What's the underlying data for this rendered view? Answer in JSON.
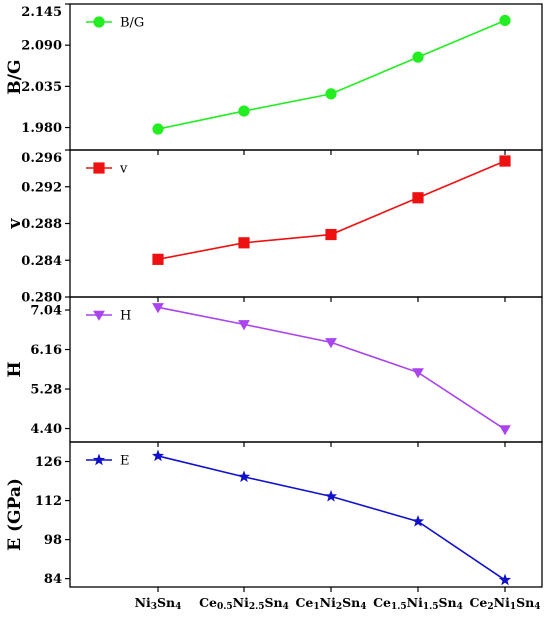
{
  "chart_data": {
    "type": "line",
    "categories": [
      {
        "parts": [
          [
            "Ni",
            ""
          ],
          [
            "3",
            "sub"
          ],
          [
            "Sn",
            ""
          ],
          [
            "4",
            "sub"
          ]
        ]
      },
      {
        "parts": [
          [
            "Ce",
            ""
          ],
          [
            "0.5",
            "sub"
          ],
          [
            "Ni",
            ""
          ],
          [
            "2.5",
            "sub"
          ],
          [
            "Sn",
            ""
          ],
          [
            "4",
            "sub"
          ]
        ]
      },
      {
        "parts": [
          [
            "Ce",
            ""
          ],
          [
            "1",
            "sub"
          ],
          [
            "Ni",
            ""
          ],
          [
            "2",
            "sub"
          ],
          [
            "Sn",
            ""
          ],
          [
            "4",
            "sub"
          ]
        ]
      },
      {
        "parts": [
          [
            "Ce",
            ""
          ],
          [
            "1.5",
            "sub"
          ],
          [
            "Ni",
            ""
          ],
          [
            "1.5",
            "sub"
          ],
          [
            "Sn",
            ""
          ],
          [
            "4",
            "sub"
          ]
        ]
      },
      {
        "parts": [
          [
            "Ce",
            ""
          ],
          [
            "2",
            "sub"
          ],
          [
            "Ni",
            ""
          ],
          [
            "1",
            "sub"
          ],
          [
            "Sn",
            ""
          ],
          [
            "4",
            "sub"
          ]
        ]
      }
    ],
    "panels": [
      {
        "ylabel": "B/G",
        "legend": "B/G",
        "marker": "circle",
        "color": "#22ee22",
        "ylim": [
          1.95,
          2.145
        ],
        "ticks": [
          "1.980",
          "2.035",
          "2.090",
          "2.145"
        ],
        "values": [
          1.978,
          2.002,
          2.025,
          2.074,
          2.123
        ]
      },
      {
        "ylabel": "v",
        "legend": "v",
        "marker": "square",
        "color": "#ee1111",
        "ylim": [
          0.28,
          0.296
        ],
        "ticks": [
          "0.280",
          "0.284",
          "0.288",
          "0.292",
          "0.296"
        ],
        "values": [
          0.2841,
          0.2859,
          0.2868,
          0.2908,
          0.2948
        ]
      },
      {
        "ylabel": "H",
        "legend": "H",
        "marker": "triangle-down",
        "color": "#aa44ee",
        "ylim": [
          4.1,
          7.33
        ],
        "ticks": [
          "4.40",
          "5.28",
          "6.16",
          "7.04"
        ],
        "values": [
          7.1,
          6.72,
          6.32,
          5.65,
          4.38
        ]
      },
      {
        "ylabel": "E (GPa)",
        "legend": "E",
        "marker": "star",
        "color": "#1111cc",
        "ylim": [
          81,
          133
        ],
        "ticks": [
          "84",
          "98",
          "112",
          "126"
        ],
        "values": [
          128.0,
          120.5,
          113.5,
          104.5,
          83.5
        ]
      }
    ]
  }
}
